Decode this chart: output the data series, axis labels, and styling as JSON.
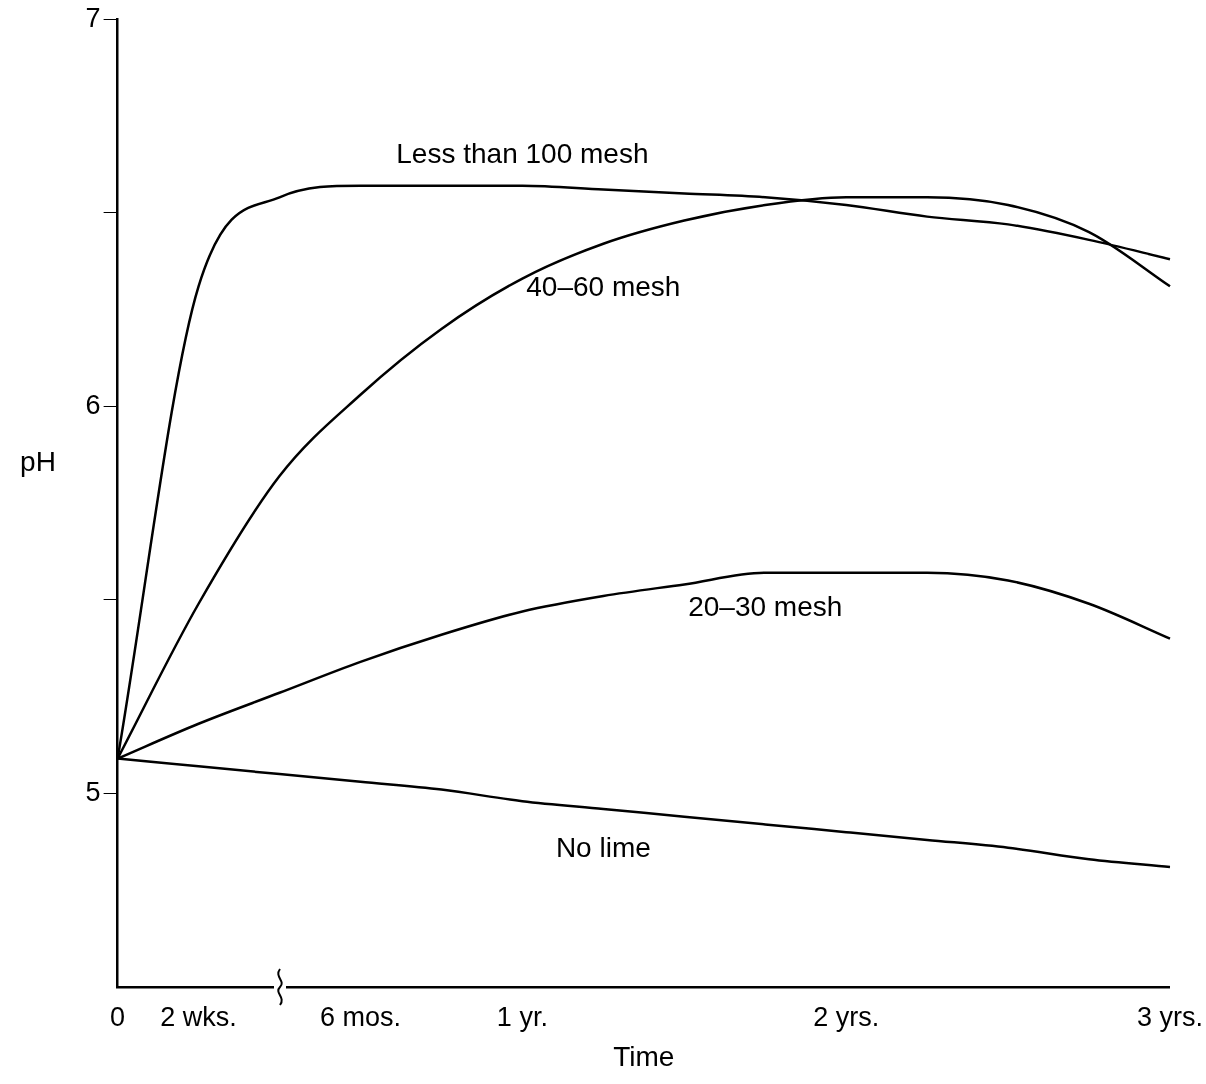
{
  "chart_data": {
    "type": "line",
    "xlabel": "Time",
    "ylabel": "pH",
    "categories": [
      "0",
      "2 wks.",
      null,
      "6 mos.",
      null,
      "1 yr.",
      null,
      null,
      null,
      "2 yrs.",
      null,
      null,
      null,
      "3 yrs."
    ],
    "ylim": [
      4.5,
      7
    ],
    "yticks": [
      5,
      {
        "value": 5.5,
        "label": null
      },
      6,
      {
        "value": 6.5,
        "label": null
      },
      7
    ],
    "grid": false,
    "legend": false,
    "marker": "none",
    "line_style": "solid",
    "series": [
      {
        "name": "Less than 100 mesh",
        "color": "#000000",
        "values": [
          5.09,
          6.31,
          6.54,
          6.57,
          6.57,
          6.57,
          6.56,
          6.55,
          6.54,
          6.52,
          6.49,
          6.47,
          6.43,
          6.38
        ]
      },
      {
        "name": "40–60 mesh",
        "color": "#000000",
        "values": [
          5.09,
          5.49,
          5.82,
          6.03,
          6.2,
          6.33,
          6.42,
          6.48,
          6.52,
          6.54,
          6.54,
          6.52,
          6.45,
          6.31
        ]
      },
      {
        "name": "20–30 mesh",
        "color": "#000000",
        "values": [
          5.09,
          5.18,
          5.26,
          5.34,
          5.41,
          5.47,
          5.51,
          5.54,
          5.57,
          5.57,
          5.57,
          5.55,
          5.49,
          5.4
        ]
      },
      {
        "name": "No lime",
        "color": "#000000",
        "values": [
          5.09,
          5.07,
          5.05,
          5.03,
          5.01,
          4.98,
          4.96,
          4.94,
          4.92,
          4.9,
          4.88,
          4.86,
          4.83,
          4.81
        ]
      }
    ]
  }
}
